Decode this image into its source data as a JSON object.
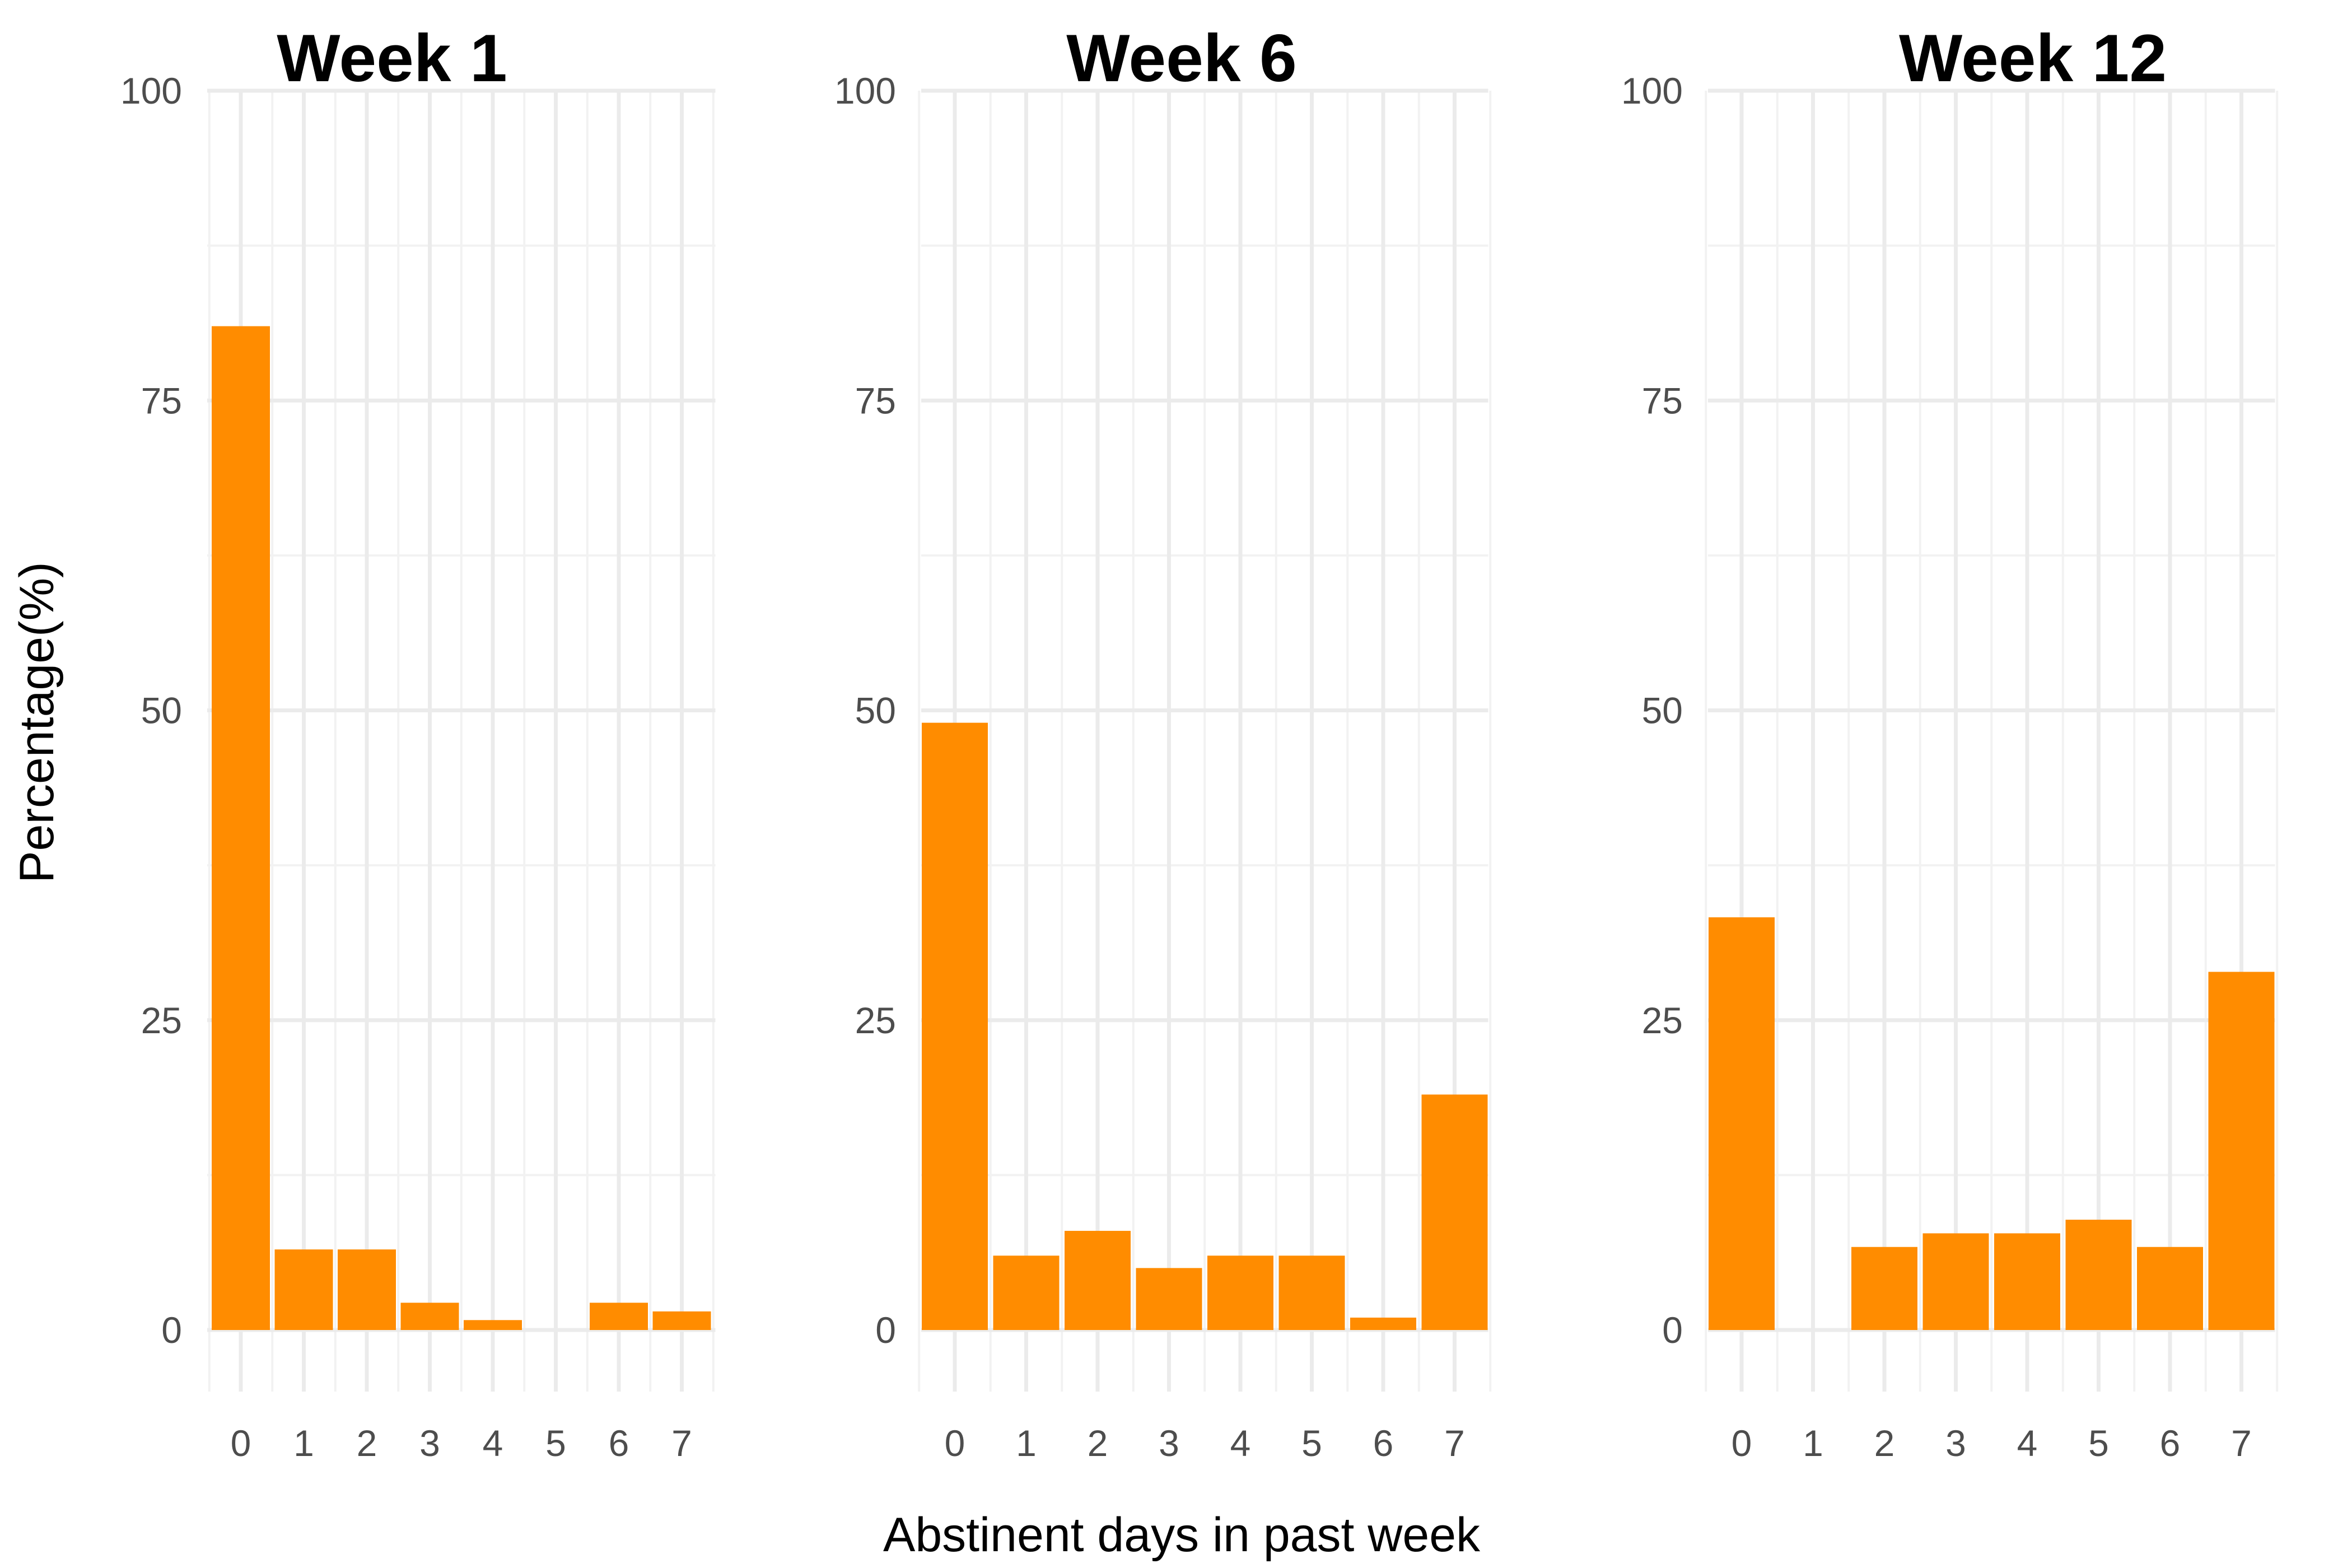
{
  "chart_data": [
    {
      "type": "bar",
      "title": "Week 1",
      "categories": [
        "0",
        "1",
        "2",
        "3",
        "4",
        "5",
        "6",
        "7"
      ],
      "values": [
        81,
        6.5,
        6.5,
        2.2,
        0.8,
        0,
        2.2,
        1.5
      ],
      "ylim": [
        0,
        100
      ],
      "yticks": [
        "0",
        "25",
        "50",
        "75",
        "100"
      ]
    },
    {
      "type": "bar",
      "title": "Week 6",
      "categories": [
        "0",
        "1",
        "2",
        "3",
        "4",
        "5",
        "6",
        "7"
      ],
      "values": [
        49,
        6,
        8,
        5,
        6,
        6,
        1,
        19
      ],
      "ylim": [
        0,
        100
      ],
      "yticks": [
        "0",
        "25",
        "50",
        "75",
        "100"
      ]
    },
    {
      "type": "bar",
      "title": "Week 12",
      "categories": [
        "0",
        "1",
        "2",
        "3",
        "4",
        "5",
        "6",
        "7"
      ],
      "values": [
        33.3,
        0,
        6.7,
        7.8,
        7.8,
        8.9,
        6.7,
        28.9
      ],
      "ylim": [
        0,
        100
      ],
      "yticks": [
        "0",
        "25",
        "50",
        "75",
        "100"
      ]
    }
  ],
  "shared": {
    "xlabel": "Abstinent days in past week",
    "ylabel": "Percentage(%)",
    "bar_color": "#FF8C00",
    "grid_major_color": "#EBEBEB",
    "grid_minor_color": "#F2F2F2",
    "grid": true,
    "legend": "none"
  }
}
